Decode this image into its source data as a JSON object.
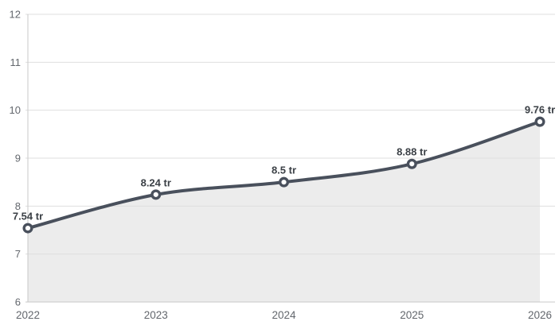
{
  "chart_data": {
    "type": "area",
    "categories": [
      "2022",
      "2023",
      "2024",
      "2025",
      "2026"
    ],
    "series": [
      {
        "name": "value",
        "values": [
          7.54,
          8.24,
          8.5,
          8.88,
          9.76
        ],
        "point_labels": [
          "7.54 tr",
          "8.24 tr",
          "8.5 tr",
          "8.88 tr",
          "9.76 tr"
        ]
      }
    ],
    "title": "",
    "xlabel": "",
    "ylabel": "",
    "ylim": [
      6,
      12
    ],
    "yticks": [
      "12",
      "11",
      "10",
      "9",
      "8",
      "7",
      "6"
    ],
    "ytick_values": [
      12,
      11,
      10,
      9,
      8,
      7,
      6
    ],
    "grid": true,
    "legend": false,
    "smooth_curve": true,
    "colors": {
      "line": "#49505c",
      "marker_fill": "#ffffff",
      "area_fill": "#ececec",
      "gridline": "#dfdfdf",
      "axis_line": "#c9c9c9",
      "tick_label": "#63676d",
      "point_label": "#3b4046",
      "background": "#ffffff"
    }
  }
}
